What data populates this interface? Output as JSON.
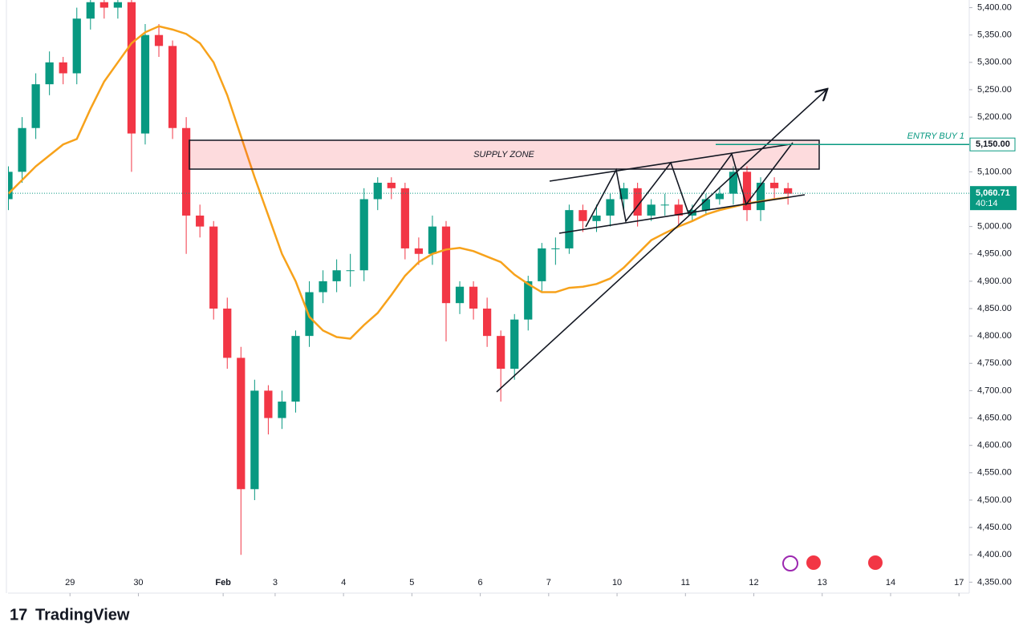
{
  "chart_data": {
    "type": "candlestick",
    "x": [
      -0.9,
      -0.7,
      -0.5,
      -0.3,
      -0.1,
      0.1,
      0.3,
      0.5,
      0.7,
      0.9,
      1.1,
      1.3,
      1.5,
      1.7,
      1.9,
      2.1,
      2.3,
      2.5,
      2.7,
      2.9,
      3.1,
      3.3,
      3.5,
      3.7,
      3.9,
      4.1,
      4.3,
      4.5,
      4.7,
      4.9,
      5.1,
      5.3,
      5.5,
      5.7,
      5.9,
      6.1,
      6.3,
      6.5,
      6.7,
      6.9,
      7.1,
      7.3,
      7.5,
      7.7,
      7.9,
      8.1,
      8.3,
      8.5,
      8.7,
      8.9,
      9.1,
      9.3,
      9.5,
      9.7,
      9.9,
      10.1,
      10.3,
      10.5
    ],
    "open": [
      5050,
      5100,
      5180,
      5260,
      5300,
      5280,
      5380,
      5410,
      5400,
      5410,
      5170,
      5350,
      5330,
      5180,
      5020,
      5000,
      4850,
      4760,
      4520,
      4700,
      4650,
      4680,
      4800,
      4880,
      4900,
      4920,
      4920,
      5050,
      5080,
      5070,
      4960,
      4950,
      5000,
      4860,
      4890,
      4850,
      4800,
      4740,
      4830,
      4900,
      4960,
      4960,
      5030,
      5010,
      5020,
      5050,
      5070,
      5020,
      5040,
      5040,
      5020,
      5030,
      5050,
      5060,
      5100,
      5030,
      5080,
      5070
    ],
    "high": [
      5110,
      5200,
      5280,
      5320,
      5310,
      5400,
      5430,
      5430,
      5430,
      5420,
      5370,
      5370,
      5340,
      5200,
      5040,
      5010,
      4870,
      4780,
      4720,
      4710,
      4700,
      4810,
      4900,
      4920,
      4940,
      4950,
      5070,
      5090,
      5090,
      5080,
      4980,
      5020,
      5010,
      4900,
      4900,
      4870,
      4810,
      4840,
      4910,
      4970,
      4980,
      5040,
      5040,
      5040,
      5060,
      5080,
      5080,
      5050,
      5060,
      5050,
      5040,
      5060,
      5070,
      5110,
      5110,
      5090,
      5090,
      5080
    ],
    "low": [
      5030,
      5080,
      5160,
      5240,
      5260,
      5260,
      5360,
      5380,
      5380,
      5100,
      5150,
      5310,
      5160,
      4950,
      4980,
      4830,
      4740,
      4400,
      4500,
      4620,
      4630,
      4660,
      4780,
      4860,
      4880,
      4890,
      4900,
      5030,
      5050,
      4940,
      4930,
      4930,
      4790,
      4840,
      4830,
      4780,
      4680,
      4720,
      4810,
      4880,
      4930,
      4950,
      4990,
      4990,
      5000,
      5030,
      5000,
      5010,
      5020,
      5000,
      5010,
      5020,
      5040,
      5040,
      5010,
      5010,
      5050,
      5040
    ],
    "close": [
      5100,
      5180,
      5260,
      5300,
      5280,
      5380,
      5410,
      5400,
      5410,
      5170,
      5350,
      5330,
      5180,
      5020,
      5000,
      4850,
      4760,
      4520,
      4700,
      4650,
      4680,
      4800,
      4880,
      4900,
      4920,
      4920,
      5050,
      5080,
      5070,
      4960,
      4950,
      5000,
      4860,
      4890,
      4850,
      4800,
      4740,
      4830,
      4900,
      4960,
      4960,
      5030,
      5010,
      5020,
      5050,
      5070,
      5020,
      5040,
      5040,
      5020,
      5030,
      5050,
      5060,
      5100,
      5030,
      5080,
      5070,
      5060
    ],
    "up_color": "#089981",
    "down_color": "#f23645",
    "moving_average": {
      "color": "#f7a21b",
      "values": [
        5060,
        5085,
        5110,
        5130,
        5150,
        5160,
        5215,
        5265,
        5300,
        5335,
        5355,
        5366,
        5360,
        5352,
        5335,
        5300,
        5240,
        5165,
        5090,
        5020,
        4950,
        4900,
        4835,
        4810,
        4798,
        4795,
        4820,
        4842,
        4875,
        4910,
        4935,
        4950,
        4958,
        4961,
        4955,
        4945,
        4935,
        4912,
        4895,
        4880,
        4880,
        4888,
        4890,
        4895,
        4905,
        4925,
        4950,
        4975,
        4988,
        5000,
        5010,
        5022,
        5030,
        5036,
        5042,
        5046,
        5050,
        5053
      ]
    },
    "ylim": [
      4330,
      5414
    ],
    "yticks": [
      {
        "value": 5400,
        "label": "5,400.00"
      },
      {
        "value": 5350,
        "label": "5,350.00"
      },
      {
        "value": 5300,
        "label": "5,300.00"
      },
      {
        "value": 5250,
        "label": "5,250.00"
      },
      {
        "value": 5200,
        "label": "5,200.00"
      },
      {
        "value": 5100,
        "label": "5,100.00"
      },
      {
        "value": 5000,
        "label": "5,000.00"
      },
      {
        "value": 4950,
        "label": "4,950.00"
      },
      {
        "value": 4900,
        "label": "4,900.00"
      },
      {
        "value": 4850,
        "label": "4,850.00"
      },
      {
        "value": 4800,
        "label": "4,800.00"
      },
      {
        "value": 4750,
        "label": "4,750.00"
      },
      {
        "value": 4700,
        "label": "4,700.00"
      },
      {
        "value": 4650,
        "label": "4,650.00"
      },
      {
        "value": 4600,
        "label": "4,600.00"
      },
      {
        "value": 4550,
        "label": "4,550.00"
      },
      {
        "value": 4500,
        "label": "4,500.00"
      },
      {
        "value": 4450,
        "label": "4,450.00"
      },
      {
        "value": 4400,
        "label": "4,400.00"
      },
      {
        "value": 4350,
        "label": "4,350.00"
      }
    ],
    "xlim": [
      -0.906,
      13.15
    ],
    "xticks": [
      {
        "value": 0,
        "label": "29"
      },
      {
        "value": 1,
        "label": "30"
      },
      {
        "value": 2.24,
        "label": "Feb"
      },
      {
        "value": 3,
        "label": "3"
      },
      {
        "value": 4,
        "label": "4"
      },
      {
        "value": 5,
        "label": "5"
      },
      {
        "value": 6,
        "label": "6"
      },
      {
        "value": 7,
        "label": "7"
      },
      {
        "value": 8,
        "label": "10"
      },
      {
        "value": 9,
        "label": "11"
      },
      {
        "value": 10,
        "label": "12"
      },
      {
        "value": 11,
        "label": "13"
      },
      {
        "value": 12,
        "label": "14"
      },
      {
        "value": 13,
        "label": "17"
      }
    ],
    "supply_zone": "SUPPLY ZONE",
    "entry": {
      "label": "ENTRY BUY 1",
      "price": {
        "value": 5150,
        "label": "5,150.00"
      },
      "color": "#089981"
    },
    "current_price": {
      "value": 5060.71,
      "label": "5,060.71",
      "countdown": "40:14",
      "color": "#089981"
    }
  },
  "brand": "TradingView"
}
